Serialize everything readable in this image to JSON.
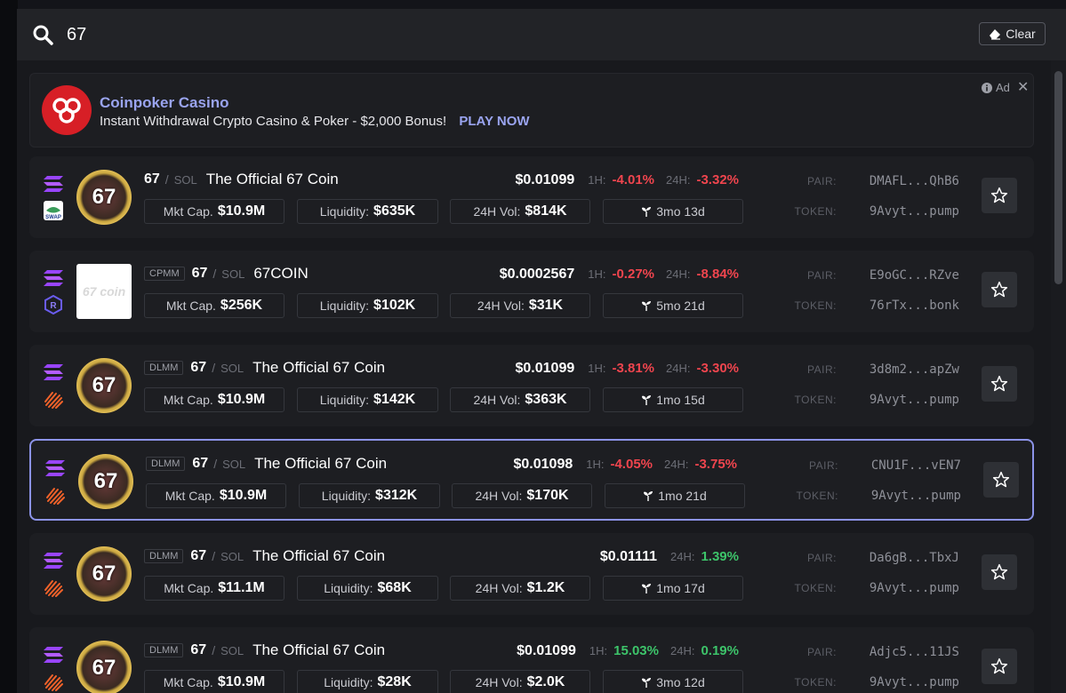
{
  "search": {
    "query": "67"
  },
  "clear_label": "Clear",
  "ad": {
    "title": "Coinpoker Casino",
    "description": "Instant Withdrawal Crypto Casino & Poker - $2,000 Bonus!",
    "cta": "PLAY NOW",
    "tag": "Ad"
  },
  "labels": {
    "mkt_cap": "Mkt Cap.",
    "liquidity": "Liquidity:",
    "vol": "24H Vol:",
    "h1": "1H:",
    "h24": "24H:",
    "pair": "PAIR:",
    "token": "TOKEN:",
    "quote_sep": "/",
    "quote": "SOL"
  },
  "colors": {
    "negative": "#f0454e",
    "positive": "#3dc46a",
    "accent": "#9aa4f0",
    "selected_border": "#8c93e8"
  },
  "results": [
    {
      "dex_tag": "",
      "dex_icon": "swap-icon",
      "symbol": "67",
      "name": "The Official 67 Coin",
      "avatar": "67",
      "price": "$0.01099",
      "change_1h": "-4.01%",
      "change_24h": "-3.32%",
      "mkt_cap": "$10.9M",
      "liquidity": "$635K",
      "volume": "$814K",
      "age": "3mo 13d",
      "pair": "DMAFL...QhB6",
      "token": "9Avyt...pump",
      "selected": false
    },
    {
      "dex_tag": "CPMM",
      "dex_icon": "raydium-icon",
      "symbol": "67",
      "name": "67COIN",
      "avatar": "67 coin",
      "price": "$0.0002567",
      "change_1h": "-0.27%",
      "change_24h": "-8.84%",
      "mkt_cap": "$256K",
      "liquidity": "$102K",
      "volume": "$31K",
      "age": "5mo 21d",
      "pair": "E9oGC...RZve",
      "token": "76rTx...bonk",
      "selected": false
    },
    {
      "dex_tag": "DLMM",
      "dex_icon": "meteora-icon",
      "symbol": "67",
      "name": "The Official 67 Coin",
      "avatar": "67",
      "price": "$0.01099",
      "change_1h": "-3.81%",
      "change_24h": "-3.30%",
      "mkt_cap": "$10.9M",
      "liquidity": "$142K",
      "volume": "$363K",
      "age": "1mo 15d",
      "pair": "3d8m2...apZw",
      "token": "9Avyt...pump",
      "selected": false
    },
    {
      "dex_tag": "DLMM",
      "dex_icon": "meteora-icon",
      "symbol": "67",
      "name": "The Official 67 Coin",
      "avatar": "67",
      "price": "$0.01098",
      "change_1h": "-4.05%",
      "change_24h": "-3.75%",
      "mkt_cap": "$10.9M",
      "liquidity": "$312K",
      "volume": "$170K",
      "age": "1mo 21d",
      "pair": "CNU1F...vEN7",
      "token": "9Avyt...pump",
      "selected": true
    },
    {
      "dex_tag": "DLMM",
      "dex_icon": "meteora-icon",
      "symbol": "67",
      "name": "The Official 67 Coin",
      "avatar": "67",
      "price": "$0.01111",
      "change_1h": "",
      "change_24h": "1.39%",
      "mkt_cap": "$11.1M",
      "liquidity": "$68K",
      "volume": "$1.2K",
      "age": "1mo 17d",
      "pair": "Da6gB...TbxJ",
      "token": "9Avyt...pump",
      "selected": false
    },
    {
      "dex_tag": "DLMM",
      "dex_icon": "meteora-icon",
      "symbol": "67",
      "name": "The Official 67 Coin",
      "avatar": "67",
      "price": "$0.01099",
      "change_1h": "15.03%",
      "change_24h": "0.19%",
      "mkt_cap": "$10.9M",
      "liquidity": "$28K",
      "volume": "$2.0K",
      "age": "3mo 12d",
      "pair": "Adjc5...11JS",
      "token": "9Avyt...pump",
      "selected": false
    }
  ]
}
